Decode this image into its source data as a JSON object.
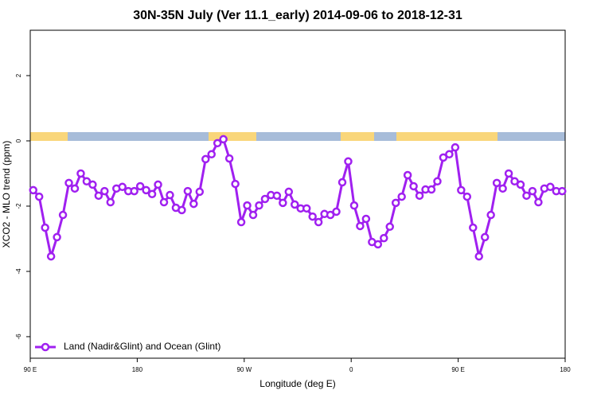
{
  "chart_data": {
    "type": "line",
    "title": "30N-35N July (Ver 11.1_early)   2014-09-06 to 2018-12-31",
    "x_label": "Longitude (deg E)",
    "y_label": "XCO2 - MLO trend (ppm)",
    "xlim": [
      90,
      540
    ],
    "ylim": [
      -6.66,
      3.39
    ],
    "xticks": [
      {
        "value": 90,
        "label": "90 E"
      },
      180,
      {
        "value": 270,
        "label": "90 W"
      },
      {
        "value": 360,
        "label": "0"
      },
      {
        "value": 450,
        "label": "90 E"
      },
      {
        "value": 540,
        "label": "180"
      }
    ],
    "yticks": [
      -6,
      -4,
      -2,
      0,
      2
    ],
    "legend_position": "bottom-left",
    "x": [
      92.5,
      97.5,
      102.5,
      107.5,
      112.5,
      117.5,
      122.5,
      127.5,
      132.5,
      137.5,
      142.5,
      147.5,
      152.5,
      157.5,
      162.5,
      167.5,
      172.5,
      177.5,
      182.5,
      187.5,
      192.5,
      197.5,
      202.5,
      207.5,
      212.5,
      217.5,
      222.5,
      227.5,
      232.5,
      237.5,
      242.5,
      247.5,
      252.5,
      257.5,
      262.5,
      267.5,
      272.5,
      277.5,
      282.5,
      287.5,
      292.5,
      297.5,
      302.5,
      307.5,
      312.5,
      317.5,
      322.5,
      327.5,
      332.5,
      337.5,
      342.5,
      347.5,
      352.5,
      357.5,
      362.5,
      367.5,
      372.5,
      377.5,
      382.5,
      387.5,
      392.5,
      397.5,
      402.5,
      407.5,
      412.5,
      417.5,
      422.5,
      427.5,
      432.5,
      437.5,
      442.5,
      447.5,
      452.5,
      457.5,
      462.5,
      467.5,
      472.5,
      477.5,
      482.5,
      487.5,
      492.5,
      497.5,
      502.5,
      507.5,
      512.5,
      517.5,
      522.5,
      527.5,
      532.5,
      537.5
    ],
    "series": [
      {
        "name": "Land (Nadir&Glint) and Ocean (Glint)",
        "color": "#a020f0",
        "values": [
          -1.51,
          -1.71,
          -2.66,
          -3.54,
          -2.95,
          -2.27,
          -1.29,
          -1.46,
          -1.0,
          -1.24,
          -1.34,
          -1.68,
          -1.54,
          -1.88,
          -1.46,
          -1.41,
          -1.54,
          -1.54,
          -1.39,
          -1.51,
          -1.63,
          -1.34,
          -1.88,
          -1.66,
          -2.05,
          -2.12,
          -1.54,
          -1.93,
          -1.56,
          -0.56,
          -0.41,
          -0.07,
          0.05,
          -0.54,
          -1.32,
          -2.49,
          -1.98,
          -2.27,
          -1.98,
          -1.78,
          -1.66,
          -1.68,
          -1.9,
          -1.56,
          -1.95,
          -2.07,
          -2.07,
          -2.32,
          -2.49,
          -2.24,
          -2.27,
          -2.17,
          -1.27,
          -0.63,
          -1.98,
          -2.61,
          -2.39,
          -3.1,
          -3.17,
          -2.98,
          -2.63,
          -1.9,
          -1.71,
          -1.05,
          -1.39,
          -1.68,
          -1.49,
          -1.49,
          -1.24,
          -0.51,
          -0.41,
          -0.2,
          -1.51,
          -1.71,
          -2.66,
          -3.54,
          -2.95,
          -2.27,
          -1.29,
          -1.46,
          -1.0,
          -1.24,
          -1.34,
          -1.68,
          -1.54,
          -1.88,
          -1.46,
          -1.41,
          -1.54,
          -1.54
        ]
      }
    ]
  }
}
